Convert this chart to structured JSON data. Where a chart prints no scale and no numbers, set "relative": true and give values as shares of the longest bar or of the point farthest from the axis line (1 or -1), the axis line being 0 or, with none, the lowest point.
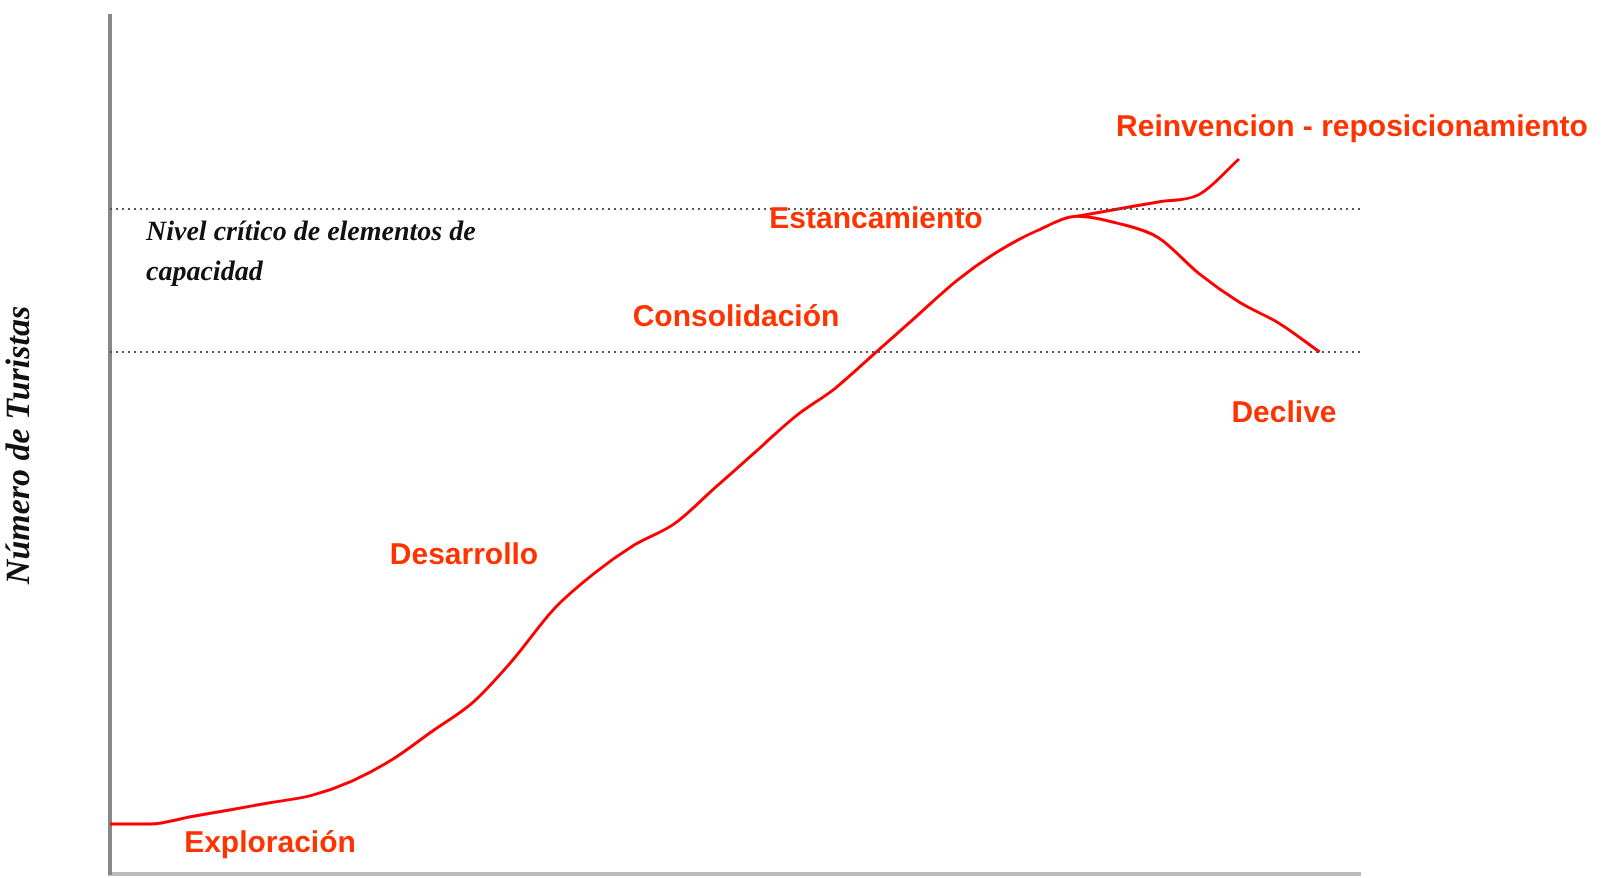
{
  "chart_data": {
    "type": "line",
    "relative": true,
    "ylabel": "Número de Turistas",
    "categories": [
      null,
      null,
      null,
      null,
      null,
      null,
      null,
      null,
      null,
      null,
      null,
      null,
      null,
      null,
      null,
      null,
      null,
      null,
      null,
      null,
      null,
      null,
      null,
      null,
      null,
      null,
      null,
      null,
      null,
      null,
      null,
      null
    ],
    "series": [
      {
        "color": "#ff0000",
        "values": [
          0.07,
          0.07,
          0.08,
          0.09,
          0.1,
          0.11,
          0.13,
          0.16,
          0.2,
          0.24,
          0.3,
          0.37,
          0.42,
          0.46,
          0.49,
          0.54,
          0.59,
          0.64,
          0.68,
          0.73,
          0.78,
          0.83,
          0.87,
          0.9,
          0.92,
          0.91,
          0.89,
          0.84,
          0.8,
          0.77,
          0.73,
          null
        ]
      },
      {
        "color": "#ff0000",
        "values": [
          null,
          null,
          null,
          null,
          null,
          null,
          null,
          null,
          null,
          null,
          null,
          null,
          null,
          null,
          null,
          null,
          null,
          null,
          null,
          null,
          null,
          null,
          null,
          null,
          0.92,
          0.93,
          0.94,
          0.95,
          1.0,
          null,
          null,
          null
        ]
      }
    ],
    "ref_lines": [
      {
        "axis": "y",
        "value": 0.93,
        "color": "#555555",
        "line_style": "dotted"
      },
      {
        "axis": "y",
        "value": 0.73,
        "color": "#555555",
        "line_style": "dotted"
      }
    ],
    "annotations": [
      "Nivel crítico de elementos de capacidad",
      "Exploración",
      "Desarrollo",
      "Consolidación",
      "Estancamiento",
      "Reinvencion - reposicionamiento",
      "Declive"
    ],
    "grid": false,
    "legend": false,
    "marker": "none",
    "line_style": "solid"
  }
}
